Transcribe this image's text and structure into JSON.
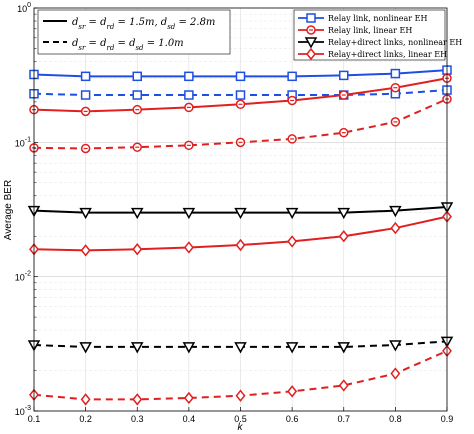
{
  "chart_data": {
    "type": "line",
    "xlabel": "k",
    "ylabel": "Average BER",
    "xlim": [
      0.1,
      0.9
    ],
    "ylim": [
      0.001,
      1
    ],
    "yscale": "log",
    "grid": true,
    "x": [
      0.1,
      0.2,
      0.3,
      0.4,
      0.5,
      0.6,
      0.7,
      0.8,
      0.9
    ],
    "x_ticks": [
      "0.1",
      "0.2",
      "0.3",
      "0.4",
      "0.5",
      "0.6",
      "0.7",
      "0.8",
      "0.9"
    ],
    "y_ticks": [
      {
        "base": "10",
        "exp": "0",
        "value": 1
      },
      {
        "base": "10",
        "exp": "-1",
        "value": 0.1
      },
      {
        "base": "10",
        "exp": "-2",
        "value": 0.01
      },
      {
        "base": "10",
        "exp": "-3",
        "value": 0.001
      }
    ],
    "legend_right": {
      "placement": "top-right",
      "entries": [
        {
          "label": "Relay link, nonlinear EH",
          "color": "#1f4fe0",
          "marker": "square"
        },
        {
          "label": "Relay link, linear EH",
          "color": "#e02020",
          "marker": "circle"
        },
        {
          "label": "Relay+direct links, nonlinear EH",
          "color": "#000000",
          "marker": "triangle-down"
        },
        {
          "label": "Relay+direct links, linear EH",
          "color": "#e02020",
          "marker": "diamond"
        }
      ]
    },
    "legend_left": {
      "placement": "top-left",
      "entries": [
        {
          "label": "d_sr = d_rd = 1.5m, d_sd = 2.8m",
          "style": "solid"
        },
        {
          "label": "d_sr = d_rd = d_sd = 1.0m",
          "style": "dashed"
        }
      ]
    },
    "series": [
      {
        "color": "#1f4fe0",
        "marker": "square",
        "style": "solid",
        "values": [
          0.32,
          0.31,
          0.31,
          0.31,
          0.31,
          0.31,
          0.315,
          0.325,
          0.345
        ]
      },
      {
        "color": "#1f4fe0",
        "marker": "square",
        "style": "dashed",
        "values": [
          0.23,
          0.225,
          0.225,
          0.225,
          0.225,
          0.225,
          0.225,
          0.23,
          0.245
        ]
      },
      {
        "color": "#e02020",
        "marker": "circle",
        "style": "solid",
        "values": [
          0.175,
          0.17,
          0.175,
          0.182,
          0.192,
          0.205,
          0.225,
          0.255,
          0.3
        ]
      },
      {
        "color": "#e02020",
        "marker": "circle",
        "style": "dashed",
        "values": [
          0.091,
          0.09,
          0.092,
          0.095,
          0.1,
          0.106,
          0.118,
          0.142,
          0.21
        ]
      },
      {
        "color": "#000000",
        "marker": "triangle-down",
        "style": "solid",
        "values": [
          0.031,
          0.03,
          0.03,
          0.03,
          0.03,
          0.03,
          0.03,
          0.031,
          0.033
        ]
      },
      {
        "color": "#e02020",
        "marker": "diamond",
        "style": "solid",
        "values": [
          0.016,
          0.0157,
          0.016,
          0.0165,
          0.0172,
          0.0183,
          0.02,
          0.023,
          0.028
        ]
      },
      {
        "color": "#000000",
        "marker": "triangle-down",
        "style": "dashed",
        "values": [
          0.0031,
          0.003,
          0.003,
          0.003,
          0.003,
          0.003,
          0.003,
          0.0031,
          0.0033
        ]
      },
      {
        "color": "#e02020",
        "marker": "diamond",
        "style": "dashed",
        "values": [
          0.00132,
          0.00122,
          0.00122,
          0.00125,
          0.0013,
          0.0014,
          0.00155,
          0.0019,
          0.0028
        ]
      }
    ]
  }
}
